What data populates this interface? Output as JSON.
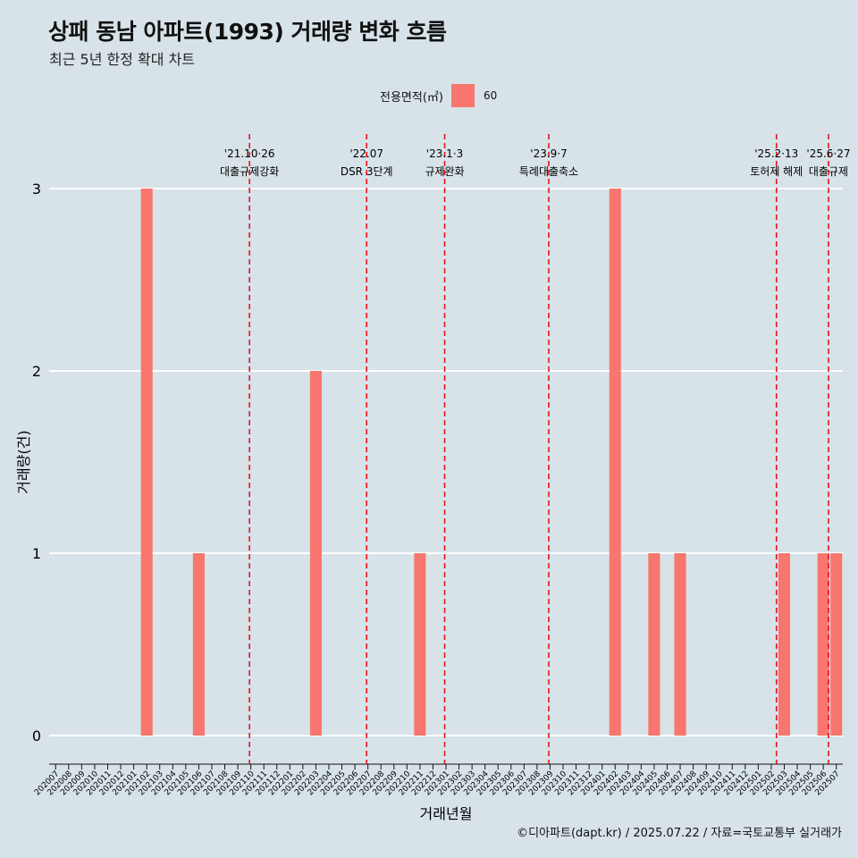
{
  "title": "상패 동남 아파트(1993) 거래량 변화 흐름",
  "subtitle": "최근 5년 한정 확대 차트",
  "legend": {
    "title": "전용면적(㎡)",
    "label": "60",
    "color": "#f8766d"
  },
  "caption": "©디아파트(dapt.kr) / 2025.07.22 / 자료=국토교통부 실거래가",
  "chart_data": {
    "type": "bar",
    "xlabel": "거래년월",
    "ylabel": "거래량(건)",
    "ylim": [
      0,
      3
    ],
    "yticks": [
      "0",
      "1",
      "2",
      "3"
    ],
    "grid": true,
    "legend_position": "top",
    "categories": [
      "202007",
      "202008",
      "202009",
      "202010",
      "202011",
      "202012",
      "202101",
      "202102",
      "202103",
      "202104",
      "202105",
      "202106",
      "202107",
      "202108",
      "202109",
      "202110",
      "202111",
      "202112",
      "202201",
      "202202",
      "202203",
      "202204",
      "202205",
      "202206",
      "202207",
      "202208",
      "202209",
      "202210",
      "202211",
      "202212",
      "202301",
      "202302",
      "202303",
      "202304",
      "202305",
      "202306",
      "202307",
      "202308",
      "202309",
      "202310",
      "202311",
      "202312",
      "202401",
      "202402",
      "202403",
      "202404",
      "202405",
      "202406",
      "202407",
      "202408",
      "202409",
      "202410",
      "202411",
      "202412",
      "202501",
      "202502",
      "202503",
      "202504",
      "202505",
      "202506",
      "202507"
    ],
    "series": [
      {
        "name": "60",
        "color": "#f8766d",
        "values": [
          0,
          0,
          0,
          0,
          0,
          0,
          0,
          3,
          0,
          0,
          0,
          1,
          0,
          0,
          0,
          0,
          0,
          0,
          0,
          0,
          2,
          0,
          0,
          0,
          0,
          0,
          0,
          0,
          1,
          0,
          0,
          0,
          0,
          0,
          0,
          0,
          0,
          0,
          0,
          0,
          0,
          0,
          0,
          3,
          0,
          0,
          1,
          0,
          1,
          0,
          0,
          0,
          0,
          0,
          0,
          0,
          1,
          0,
          0,
          1,
          1
        ]
      }
    ],
    "annotations": [
      {
        "x": 14.9,
        "date": "'21.10·26",
        "label": "대출규제강화"
      },
      {
        "x": 23.9,
        "date": "'22.07",
        "label": "DSR 3단계"
      },
      {
        "x": 29.9,
        "date": "'23.1·3",
        "label": "규제완화"
      },
      {
        "x": 37.9,
        "date": "'23.9·7",
        "label": "특례대출축소"
      },
      {
        "x": 55.4,
        "date": "'25.2·13",
        "label": "토허제 해제"
      },
      {
        "x": 59.4,
        "date": "'25.6·27",
        "label": "대출규제"
      }
    ]
  }
}
